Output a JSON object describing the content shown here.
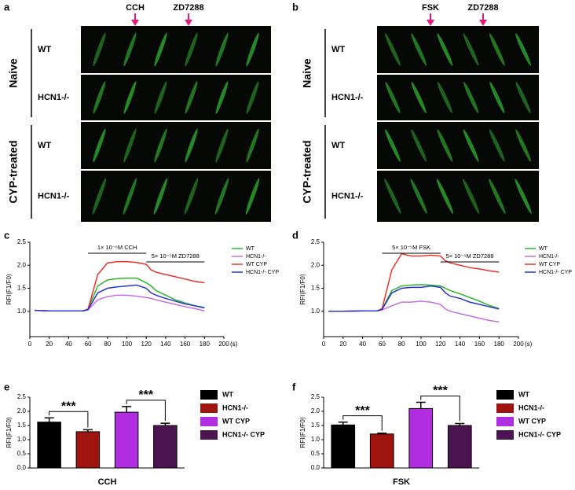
{
  "image_panels": [
    {
      "letter": "a",
      "stimuli": [
        "CCH",
        "ZD7288"
      ],
      "groups": [
        {
          "label": "Naive",
          "rows": [
            "WT",
            "HCN1-/-"
          ]
        },
        {
          "label": "CYP-treated",
          "rows": [
            "WT",
            "HCN1-/-"
          ]
        }
      ]
    },
    {
      "letter": "b",
      "stimuli": [
        "FSK",
        "ZD7288"
      ],
      "groups": [
        {
          "label": "Naive",
          "rows": [
            "WT",
            "HCN1-/-"
          ]
        },
        {
          "label": "CYP-treated",
          "rows": [
            "WT",
            "HCN1-/-"
          ]
        }
      ]
    }
  ],
  "chart_data": [
    {
      "type": "line",
      "panel": "c",
      "ylabel": "RFI(F1/F0)",
      "annotations": [
        "1× 10⁻⁶M CCH",
        "5× 10⁻⁵M ZD7288"
      ],
      "x": [
        5,
        20,
        40,
        55,
        60,
        70,
        80,
        90,
        100,
        110,
        120,
        125,
        130,
        140,
        150,
        160,
        170,
        180
      ],
      "series": [
        {
          "name": "WT",
          "color": "#2db52d",
          "values": [
            1.02,
            1.01,
            1.01,
            1.01,
            1.05,
            1.55,
            1.68,
            1.71,
            1.72,
            1.72,
            1.62,
            1.55,
            1.45,
            1.35,
            1.25,
            1.18,
            1.12,
            1.07
          ]
        },
        {
          "name": "HCN1-/-",
          "color": "#c86ee0",
          "values": [
            1.02,
            1.01,
            1.01,
            1.01,
            1.03,
            1.25,
            1.32,
            1.35,
            1.35,
            1.33,
            1.3,
            1.28,
            1.25,
            1.2,
            1.15,
            1.1,
            1.06,
            1.01
          ]
        },
        {
          "name": "WT CYP",
          "color": "#e8322a",
          "values": [
            1.02,
            1.01,
            1.01,
            1.01,
            1.05,
            1.8,
            2.05,
            2.08,
            2.08,
            2.06,
            2.02,
            1.9,
            1.85,
            1.8,
            1.75,
            1.7,
            1.65,
            1.62
          ]
        },
        {
          "name": "HCN1-/- CYP",
          "color": "#2a35d0",
          "values": [
            1.02,
            1.01,
            1.01,
            1.01,
            1.04,
            1.4,
            1.5,
            1.53,
            1.55,
            1.57,
            1.5,
            1.4,
            1.35,
            1.28,
            1.22,
            1.16,
            1.12,
            1.08
          ]
        }
      ],
      "xlim": [
        0,
        200
      ],
      "xticks": [
        0,
        20,
        40,
        60,
        80,
        100,
        120,
        140,
        160,
        180,
        200
      ],
      "xlabel": "(s)",
      "ylim": [
        0.45,
        2.5
      ],
      "yticks": [
        {
          "value": 1,
          "label": "1.0"
        },
        {
          "value": 1.5,
          "label": "1.5"
        },
        {
          "value": 2,
          "label": "2.0"
        },
        {
          "value": 2.5,
          "label": "2.5"
        }
      ]
    },
    {
      "type": "line",
      "panel": "d",
      "ylabel": "RFI(F1/F0)",
      "annotations": [
        "5× 10⁻⁵M FSK",
        "5× 10⁻⁵M ZD7288"
      ],
      "x": [
        5,
        20,
        40,
        55,
        60,
        70,
        80,
        90,
        100,
        110,
        120,
        125,
        130,
        140,
        150,
        160,
        170,
        180
      ],
      "series": [
        {
          "name": "WT",
          "color": "#2db52d",
          "values": [
            1.0,
            1.0,
            1.01,
            1.01,
            1.05,
            1.45,
            1.55,
            1.57,
            1.58,
            1.57,
            1.55,
            1.5,
            1.45,
            1.38,
            1.3,
            1.22,
            1.13,
            1.06
          ]
        },
        {
          "name": "HCN1-/-",
          "color": "#c86ee0",
          "values": [
            1.0,
            1.0,
            1.01,
            1.01,
            1.03,
            1.12,
            1.2,
            1.2,
            1.22,
            1.2,
            1.15,
            1.05,
            1.0,
            0.95,
            0.9,
            0.85,
            0.8,
            0.77
          ]
        },
        {
          "name": "WT CYP",
          "color": "#e8322a",
          "values": [
            1.0,
            1.0,
            1.01,
            1.01,
            1.06,
            1.9,
            2.25,
            2.2,
            2.2,
            2.22,
            2.2,
            2.1,
            2.05,
            2.0,
            1.95,
            1.92,
            1.88,
            1.85
          ]
        },
        {
          "name": "HCN1-/- CYP",
          "color": "#2a35d0",
          "values": [
            1.0,
            1.0,
            1.01,
            1.01,
            1.04,
            1.4,
            1.5,
            1.52,
            1.52,
            1.55,
            1.52,
            1.4,
            1.33,
            1.28,
            1.2,
            1.15,
            1.1,
            1.05
          ]
        }
      ],
      "xlim": [
        0,
        200
      ],
      "xticks": [
        0,
        20,
        40,
        60,
        80,
        100,
        120,
        140,
        160,
        180,
        200
      ],
      "xlabel": "(s)",
      "ylim": [
        0.45,
        2.5
      ],
      "yticks": [
        {
          "value": 1,
          "label": "1.0"
        },
        {
          "value": 1.5,
          "label": "1.5"
        },
        {
          "value": 2,
          "label": "2.0"
        },
        {
          "value": 2.5,
          "label": "2.5"
        }
      ]
    },
    {
      "type": "bar",
      "panel": "e",
      "ylabel": "RFI(F1/F0)",
      "xlabel": "CCH",
      "annotations": [
        "***",
        "***"
      ],
      "categories": [
        "WT",
        "HCN1-/-",
        "WT CYP",
        "HCN1-/- CYP"
      ],
      "colors": [
        "#000000",
        "#a0140f",
        "#b02ee0",
        "#4a1550"
      ],
      "values": [
        1.62,
        1.28,
        1.97,
        1.5
      ],
      "errors": [
        0.15,
        0.07,
        0.2,
        0.08
      ],
      "ylim": [
        0,
        2.5
      ],
      "yticks": [
        {
          "value": 0,
          "label": "0.0"
        },
        {
          "value": 0.5,
          "label": "0.5"
        },
        {
          "value": 1,
          "label": "1.0"
        },
        {
          "value": 1.5,
          "label": "1.5"
        },
        {
          "value": 2,
          "label": "2.0"
        },
        {
          "value": 2.5,
          "label": "2.5"
        }
      ]
    },
    {
      "type": "bar",
      "panel": "f",
      "ylabel": "RFI(F1/F0)",
      "xlabel": "FSK",
      "annotations": [
        "***",
        "***"
      ],
      "categories": [
        "WT",
        "HCN1-/-",
        "WT CYP",
        "HCN1-/- CYP"
      ],
      "colors": [
        "#000000",
        "#a0140f",
        "#b02ee0",
        "#4a1550"
      ],
      "values": [
        1.52,
        1.2,
        2.1,
        1.5
      ],
      "errors": [
        0.1,
        0.03,
        0.22,
        0.07
      ],
      "ylim": [
        0,
        2.5
      ],
      "yticks": [
        {
          "value": 0,
          "label": "0.0"
        },
        {
          "value": 0.5,
          "label": "0.5"
        },
        {
          "value": 1,
          "label": "1.0"
        },
        {
          "value": 1.5,
          "label": "1.5"
        },
        {
          "value": 2,
          "label": "2.0"
        },
        {
          "value": 2.5,
          "label": "2.5"
        }
      ]
    }
  ]
}
